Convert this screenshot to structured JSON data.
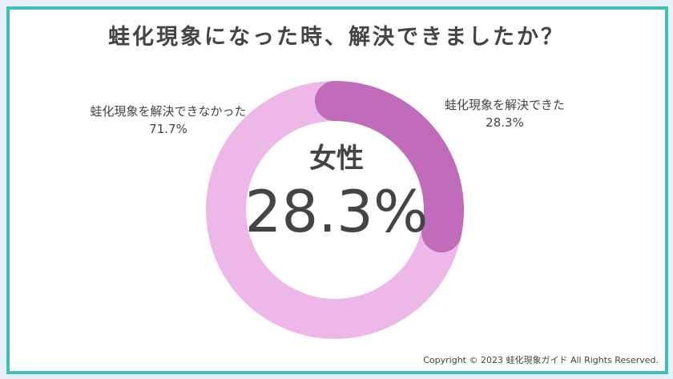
{
  "title": "蛙化現象になった時、解決できましたか？",
  "center": {
    "label": "女性",
    "value": "28.3%"
  },
  "copyright": "Copyright © 2023 蛙化現象ガイド All Rights Reserved.",
  "chart_data": {
    "type": "pie",
    "title": "蛙化現象になった時、解決できましたか？",
    "categories": [
      "蛙化現象を解決できた",
      "蛙化現象を解決できなかった"
    ],
    "values": [
      28.3,
      71.7
    ],
    "labels": [
      "28.3%",
      "71.7%"
    ],
    "colors": [
      "#c06cbb",
      "#edb8e8"
    ],
    "donut": true
  }
}
